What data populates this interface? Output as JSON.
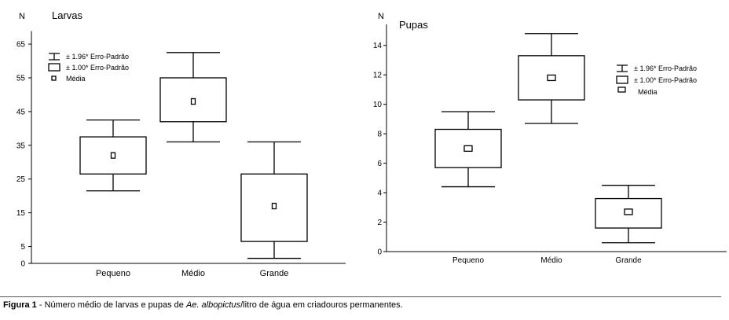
{
  "figure": {
    "caption": {
      "label": "Figura 1",
      "pre": " - Número médio de larvas e pupas de ",
      "species": "Ae. albopictus",
      "post": "/litro de água em criadouros permanentes."
    }
  },
  "chart_data": [
    {
      "type": "box",
      "title": "Larvas",
      "ylabel": "N",
      "ylim": [
        0,
        67
      ],
      "yticks": [
        0,
        5,
        15,
        25,
        35,
        45,
        55,
        65
      ],
      "categories": [
        "Pequeno",
        "Médio",
        "Grande"
      ],
      "mean": [
        32,
        48,
        17
      ],
      "se_1_00": [
        [
          26.5,
          37.5
        ],
        [
          42,
          55
        ],
        [
          6.5,
          26.5
        ]
      ],
      "se_1_96": [
        [
          21.5,
          42.5
        ],
        [
          36,
          62.5
        ],
        [
          1.5,
          36
        ]
      ],
      "legend": {
        "placement": "top-left",
        "entries": [
          "± 1.96* Erro-Padrão",
          "± 1.00* Erro-Padrão",
          "Média"
        ]
      }
    },
    {
      "type": "box",
      "title": "Pupas",
      "ylabel": "N",
      "ylim": [
        0,
        15
      ],
      "yticks": [
        0,
        2,
        4,
        6,
        8,
        10,
        12,
        14
      ],
      "categories": [
        "Pequeno",
        "Médio",
        "Grande"
      ],
      "mean": [
        7,
        11.8,
        2.7
      ],
      "se_1_00": [
        [
          5.7,
          8.3
        ],
        [
          10.3,
          13.3
        ],
        [
          1.6,
          3.6
        ]
      ],
      "se_1_96": [
        [
          4.4,
          9.5
        ],
        [
          8.7,
          14.8
        ],
        [
          0.6,
          4.5
        ]
      ],
      "legend": {
        "placement": "top-right",
        "entries": [
          "± 1.96* Erro-Padrão",
          "± 1.00* Erro-Padrão",
          "Média"
        ]
      }
    }
  ]
}
